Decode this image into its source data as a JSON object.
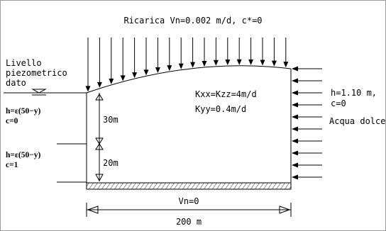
{
  "title": "Ricarica Vn=0.002 m/d, c*=0",
  "left_label": [
    "Livello",
    "piezometrico",
    "dato"
  ],
  "left_conditions": [
    {
      "h": "h=ε(50−y)",
      "c": "c=0"
    },
    {
      "h": "h=ε(50−y)",
      "c": "c=1"
    }
  ],
  "depths": [
    "30m",
    "20m"
  ],
  "conductivity": [
    "Kxx=Kzz=4m/d",
    "Kyy=0.4m/d"
  ],
  "right_condition": [
    "h=1.10  m,",
    "c=0"
  ],
  "right_label": "Acqua dolce",
  "bottom_condition": "Vn=0",
  "width_label": "200  m",
  "colors": {
    "line": "#000000",
    "background": "#ffffff",
    "frame": "#9a9a9a"
  }
}
